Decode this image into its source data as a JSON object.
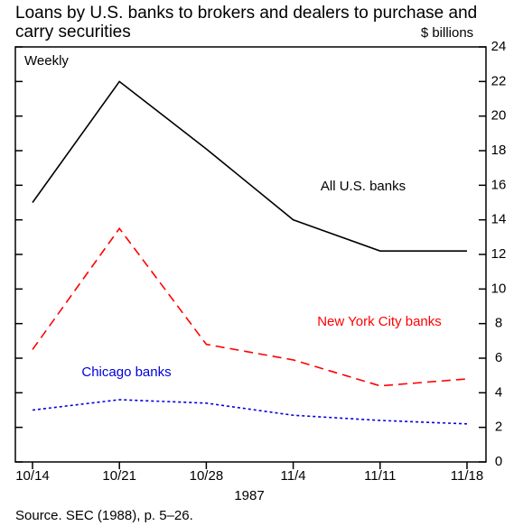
{
  "chart_data": {
    "type": "line",
    "title": "Loans by U.S. banks to brokers and dealers to purchase and carry securities",
    "y_unit": "$ billions",
    "annotation": "Weekly",
    "x_label": "1987",
    "source": "Source. SEC (1988), p. 5–26.",
    "categories": [
      "10/14",
      "10/21",
      "10/28",
      "11/4",
      "11/11",
      "11/18"
    ],
    "series": [
      {
        "name": "All U.S. banks",
        "color": "#000000",
        "dash": "solid",
        "values": [
          15.0,
          22.0,
          18.1,
          14.0,
          12.2,
          12.2
        ]
      },
      {
        "name": "New York City banks",
        "color": "#ff0000",
        "dash": "dashed",
        "values": [
          6.5,
          13.5,
          6.8,
          5.9,
          4.4,
          4.8
        ]
      },
      {
        "name": "Chicago banks",
        "color": "#0000dd",
        "dash": "dotted",
        "values": [
          3.0,
          3.6,
          3.4,
          2.7,
          2.4,
          2.2
        ]
      }
    ],
    "ylim": [
      0,
      24
    ],
    "yticks": [
      0,
      2,
      4,
      6,
      8,
      10,
      12,
      14,
      16,
      18,
      20,
      22,
      24
    ]
  }
}
